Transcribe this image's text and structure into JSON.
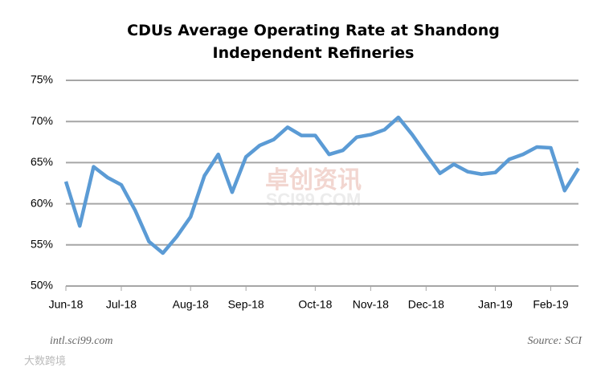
{
  "chart_data": {
    "type": "line",
    "title": "CDUs Average Operating Rate at Shandong Independent Refineries",
    "categories": [
      "Jun-18",
      null,
      null,
      null,
      "Jul-18",
      null,
      null,
      null,
      null,
      "Aug-18",
      null,
      null,
      null,
      "Sep-18",
      null,
      null,
      null,
      null,
      "Oct-18",
      null,
      null,
      null,
      "Nov-18",
      null,
      null,
      null,
      "Dec-18",
      null,
      null,
      null,
      null,
      "Jan-19",
      null,
      null,
      null,
      "Feb-19",
      null,
      null
    ],
    "series": [
      {
        "name": "CDU operating rate",
        "color": "#5b9bd5",
        "values": [
          62.7,
          57.3,
          64.5,
          63.2,
          62.3,
          59.2,
          55.4,
          54.0,
          56.0,
          58.4,
          63.4,
          66.0,
          61.4,
          65.7,
          67.1,
          67.8,
          69.3,
          68.3,
          68.3,
          66.0,
          66.5,
          68.1,
          68.4,
          69.0,
          70.5,
          68.4,
          66.0,
          63.7,
          64.8,
          63.9,
          63.6,
          63.8,
          65.4,
          66.0,
          66.9,
          66.8,
          61.6,
          64.3
        ]
      }
    ],
    "ylim": [
      50,
      75
    ],
    "yticks": [
      {
        "value": 50,
        "label": "50%"
      },
      {
        "value": 55,
        "label": "55%"
      },
      {
        "value": 60,
        "label": "60%"
      },
      {
        "value": 65,
        "label": "65%"
      },
      {
        "value": 70,
        "label": "70%"
      },
      {
        "value": 75,
        "label": "75%"
      }
    ],
    "grid": true,
    "watermark": [
      "卓创资讯",
      "SCI99.COM"
    ],
    "footer_left": "intl.sci99.com",
    "footer_right": "Source: SCI",
    "corner_logo": "大数跨境"
  }
}
